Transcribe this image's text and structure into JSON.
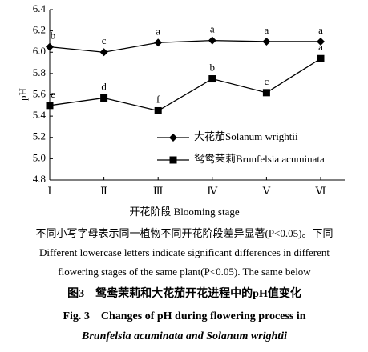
{
  "chart_data": {
    "type": "line",
    "categories": [
      "Ⅰ",
      "Ⅱ",
      "Ⅲ",
      "Ⅳ",
      "Ⅴ",
      "Ⅵ"
    ],
    "series": [
      {
        "name": "大花茄Solanum wrightii",
        "color": "#000000",
        "marker": "diamond",
        "values": [
          6.05,
          6.0,
          6.09,
          6.11,
          6.1,
          6.1
        ],
        "letters": [
          "b",
          "c",
          "a",
          "a",
          "a",
          "a"
        ]
      },
      {
        "name": "鸳鸯茉莉Brunfelsia acuminata",
        "color": "#000000",
        "marker": "square",
        "values": [
          5.5,
          5.57,
          5.45,
          5.75,
          5.62,
          5.94
        ],
        "letters": [
          "e",
          "d",
          "f",
          "b",
          "c",
          "a"
        ]
      }
    ],
    "ylim": [
      4.8,
      6.4
    ],
    "yticks": [
      4.8,
      {
        "value": 5,
        "label": "5.0"
      },
      5.2,
      5.4,
      5.6,
      5.8,
      {
        "value": 6,
        "label": "6.0"
      },
      6.2,
      6.4
    ],
    "x_label": "开花阶段 Blooming stage",
    "y_label": "pH"
  },
  "caption": {
    "note": [
      "不同小写字母表示同一植物不同开花阶段差异显著(P<0.05)。下同",
      "Different lowercase letters indicate significant differences in different",
      "flowering stages of the same plant(P<0.05). The same below"
    ],
    "title_cn": "图3　鸳鸯茉莉和大花茄开花进程中的pH值变化",
    "title_en": [
      "Fig. 3　Changes of pH during flowering process in",
      "Brunfelsia acuminata and Solanum wrightii"
    ]
  }
}
